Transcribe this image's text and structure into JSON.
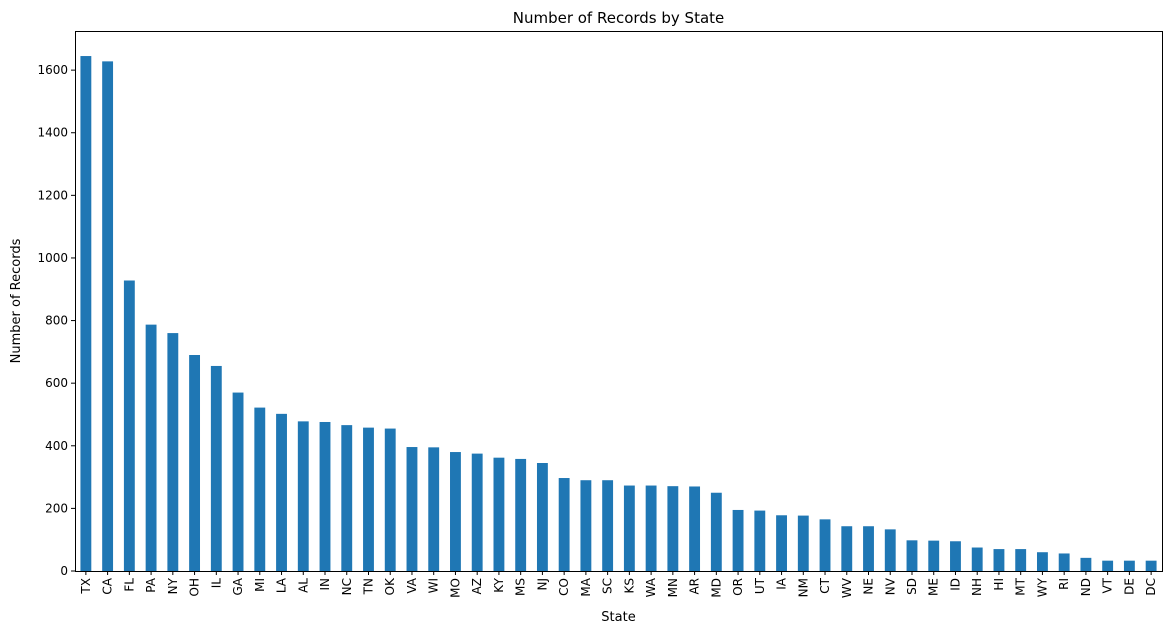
{
  "chart_data": {
    "type": "bar",
    "title": "Number of Records by State",
    "xlabel": "State",
    "ylabel": "Number of Records",
    "ylim": [
      0,
      1725
    ],
    "yticks": [
      0,
      200,
      400,
      600,
      800,
      1000,
      1200,
      1400,
      1600
    ],
    "grid": false,
    "legend": "none",
    "bar_color": "#1f77b4",
    "categories": [
      "TX",
      "CA",
      "FL",
      "PA",
      "NY",
      "OH",
      "IL",
      "GA",
      "MI",
      "LA",
      "AL",
      "IN",
      "NC",
      "TN",
      "OK",
      "VA",
      "WI",
      "MO",
      "AZ",
      "KY",
      "MS",
      "NJ",
      "CO",
      "MA",
      "SC",
      "KS",
      "WA",
      "MN",
      "AR",
      "MD",
      "OR",
      "UT",
      "IA",
      "NM",
      "CT",
      "WV",
      "NE",
      "NV",
      "SD",
      "ME",
      "ID",
      "NH",
      "HI",
      "MT",
      "WY",
      "RI",
      "ND",
      "VT",
      "DE",
      "DC"
    ],
    "values": [
      1645,
      1628,
      928,
      787,
      760,
      690,
      655,
      570,
      522,
      502,
      478,
      476,
      466,
      458,
      455,
      396,
      395,
      380,
      375,
      362,
      358,
      345,
      297,
      290,
      290,
      273,
      273,
      271,
      270,
      250,
      195,
      193,
      178,
      177,
      165,
      143,
      143,
      133,
      98,
      97,
      95,
      75,
      70,
      70,
      60,
      56,
      42,
      33,
      33,
      33
    ]
  }
}
